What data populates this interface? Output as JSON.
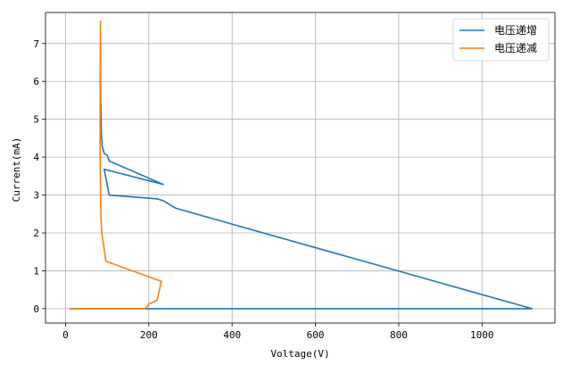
{
  "chart_data": {
    "type": "line",
    "title": "",
    "xlabel": "Voltage(V)",
    "ylabel": "Current(mA)",
    "xlim": [
      -48,
      1175
    ],
    "ylim": [
      -0.38,
      7.82
    ],
    "xticks": [
      0,
      200,
      400,
      600,
      800,
      1000
    ],
    "yticks": [
      0,
      1,
      2,
      3,
      4,
      5,
      6,
      7
    ],
    "grid": true,
    "legend_position": "top-right",
    "series": [
      {
        "name": "电压递增",
        "color": "#1f77b4",
        "x": [
          10,
          200,
          1120,
          265,
          250,
          235,
          220,
          105,
          93,
          235,
          105,
          100,
          93,
          88,
          86,
          85,
          84,
          84
        ],
        "y": [
          0,
          0,
          0,
          2.65,
          2.75,
          2.85,
          2.9,
          3.0,
          3.68,
          3.28,
          3.9,
          4.05,
          4.1,
          4.3,
          4.6,
          5.2,
          6.0,
          7.0
        ]
      },
      {
        "name": "电压递减",
        "color": "#ff7f0e",
        "x": [
          10,
          190,
          195,
          200,
          220,
          230,
          97,
          90,
          87,
          85,
          84,
          83,
          83,
          83,
          84,
          84
        ],
        "y": [
          0,
          0,
          0.05,
          0.12,
          0.22,
          0.72,
          1.25,
          1.8,
          2.0,
          2.5,
          3.2,
          4.0,
          5.0,
          6.0,
          7.0,
          7.6
        ]
      }
    ]
  }
}
